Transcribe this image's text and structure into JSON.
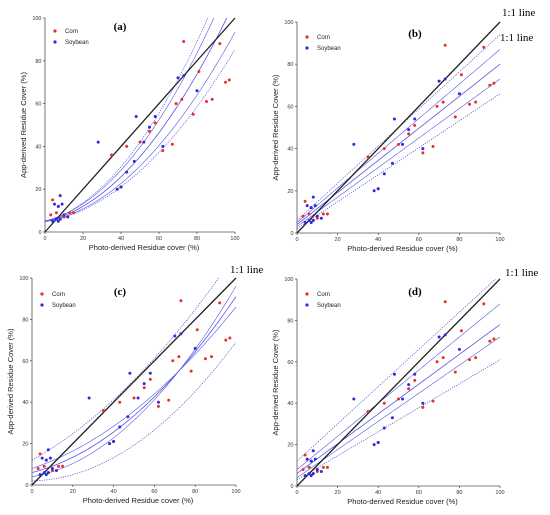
{
  "figure": {
    "oneone_label": "1:1 line"
  },
  "chart_data": [
    {
      "type": "scatter",
      "panel_label": "(a)",
      "xlabel": "Photo-derived Residue cover (%)",
      "ylabel": "App-derived Residue Cover (%)",
      "xlim": [
        0,
        100
      ],
      "ylim": [
        0,
        100
      ],
      "xticks": [
        0,
        20,
        40,
        60,
        80,
        100
      ],
      "yticks": [
        0,
        20,
        40,
        60,
        80,
        100
      ],
      "grid": false,
      "legend_position": "top-left",
      "series": [
        {
          "name": "Corn",
          "color": "#e8302a",
          "x": [
            3,
            4,
            6,
            7,
            8,
            10,
            13,
            15,
            35,
            40,
            43,
            50,
            55,
            58,
            62,
            67,
            69,
            72,
            73,
            78,
            81,
            85,
            88,
            92,
            95,
            97
          ],
          "y": [
            8,
            15,
            9,
            12,
            6,
            7,
            9,
            9,
            36,
            21,
            40,
            42,
            47,
            51,
            38,
            41,
            60,
            62,
            89,
            55,
            75,
            61,
            62,
            88,
            70,
            71
          ]
        },
        {
          "name": "Soybean",
          "color": "#2a2ae0",
          "x": [
            4,
            5,
            6,
            7,
            7,
            8,
            8,
            9,
            10,
            12,
            28,
            38,
            40,
            43,
            47,
            48,
            52,
            55,
            58,
            62,
            70,
            73,
            80
          ],
          "y": [
            5,
            13,
            6,
            12,
            5,
            6,
            17,
            13,
            8,
            7,
            42,
            20,
            21,
            28,
            33,
            54,
            42,
            49,
            54,
            40,
            72,
            73,
            66
          ]
        }
      ],
      "fit_curves": "confidence"
    },
    {
      "type": "scatter",
      "panel_label": "(b)",
      "xlabel": "Photo-derived Residue cover (%)",
      "ylabel": "App-derived Residue Cover (%)",
      "xlim": [
        0,
        100
      ],
      "ylim": [
        0,
        100
      ],
      "xticks": [
        0,
        20,
        40,
        60,
        80,
        100
      ],
      "yticks": [
        0,
        20,
        40,
        60,
        80,
        100
      ],
      "grid": false,
      "legend_position": "top-left",
      "series": [
        {
          "name": "Corn",
          "color": "#e8302a",
          "x": [
            3,
            4,
            6,
            7,
            8,
            10,
            13,
            15,
            35,
            40,
            43,
            50,
            55,
            58,
            62,
            67,
            69,
            72,
            73,
            78,
            81,
            85,
            88,
            92,
            95,
            97
          ],
          "y": [
            8,
            15,
            9,
            12,
            6,
            7,
            9,
            9,
            36,
            21,
            40,
            42,
            47,
            51,
            38,
            41,
            60,
            62,
            89,
            55,
            75,
            61,
            62,
            88,
            70,
            71
          ]
        },
        {
          "name": "Soybean",
          "color": "#2a2ae0",
          "x": [
            4,
            5,
            6,
            7,
            7,
            8,
            8,
            9,
            10,
            12,
            28,
            38,
            40,
            43,
            47,
            48,
            52,
            55,
            58,
            62,
            70,
            73,
            80
          ],
          "y": [
            5,
            13,
            6,
            12,
            5,
            6,
            17,
            13,
            8,
            7,
            42,
            20,
            21,
            28,
            33,
            54,
            42,
            49,
            54,
            40,
            72,
            73,
            66
          ]
        }
      ],
      "fit_curves": "linear"
    },
    {
      "type": "scatter",
      "panel_label": "(c)",
      "xlabel": "Photo-derived Residue cover (%)",
      "ylabel": "App-derived Residue Cover (%)",
      "xlim": [
        0,
        100
      ],
      "ylim": [
        0,
        100
      ],
      "xticks": [
        0,
        20,
        40,
        60,
        80,
        100
      ],
      "yticks": [
        0,
        20,
        40,
        60,
        80,
        100
      ],
      "grid": false,
      "legend_position": "top-left",
      "series": [
        {
          "name": "Corn",
          "color": "#e8302a",
          "x": [
            3,
            4,
            6,
            7,
            8,
            10,
            13,
            15,
            35,
            40,
            43,
            50,
            55,
            58,
            62,
            67,
            69,
            72,
            73,
            78,
            81,
            85,
            88,
            92,
            95,
            97
          ],
          "y": [
            8,
            15,
            9,
            12,
            6,
            7,
            9,
            9,
            36,
            21,
            40,
            42,
            47,
            51,
            38,
            41,
            60,
            62,
            89,
            55,
            75,
            61,
            62,
            88,
            70,
            71
          ]
        },
        {
          "name": "Soybean",
          "color": "#2a2ae0",
          "x": [
            4,
            5,
            6,
            7,
            7,
            8,
            8,
            9,
            10,
            12,
            28,
            38,
            40,
            43,
            47,
            48,
            52,
            55,
            58,
            62,
            70,
            73,
            80
          ],
          "y": [
            5,
            13,
            6,
            12,
            5,
            6,
            17,
            13,
            8,
            7,
            42,
            20,
            21,
            28,
            33,
            54,
            42,
            49,
            54,
            40,
            72,
            73,
            66
          ]
        }
      ],
      "fit_curves": "prediction-convex"
    },
    {
      "type": "scatter",
      "panel_label": "(d)",
      "xlabel": "Photo-derived Residue cover (%)",
      "ylabel": "App-derived Residue Cover (%)",
      "xlim": [
        0,
        100
      ],
      "ylim": [
        0,
        100
      ],
      "xticks": [
        0,
        20,
        40,
        60,
        80,
        100
      ],
      "yticks": [
        0,
        20,
        40,
        60,
        80,
        100
      ],
      "grid": false,
      "legend_position": "top-left",
      "series": [
        {
          "name": "Corn",
          "color": "#e8302a",
          "x": [
            3,
            4,
            6,
            7,
            8,
            10,
            13,
            15,
            35,
            40,
            43,
            50,
            55,
            58,
            62,
            67,
            69,
            72,
            73,
            78,
            81,
            85,
            88,
            92,
            95,
            97
          ],
          "y": [
            8,
            15,
            9,
            12,
            6,
            7,
            9,
            9,
            36,
            21,
            40,
            42,
            47,
            51,
            38,
            41,
            60,
            62,
            89,
            55,
            75,
            61,
            62,
            88,
            70,
            71
          ]
        },
        {
          "name": "Soybean",
          "color": "#2a2ae0",
          "x": [
            4,
            5,
            6,
            7,
            7,
            8,
            8,
            9,
            10,
            12,
            28,
            38,
            40,
            43,
            47,
            48,
            52,
            55,
            58,
            62,
            70,
            73,
            80
          ],
          "y": [
            5,
            13,
            6,
            12,
            5,
            6,
            17,
            13,
            8,
            7,
            42,
            20,
            21,
            28,
            33,
            54,
            42,
            49,
            54,
            40,
            72,
            73,
            66
          ]
        }
      ],
      "fit_curves": "prediction-linear"
    }
  ]
}
